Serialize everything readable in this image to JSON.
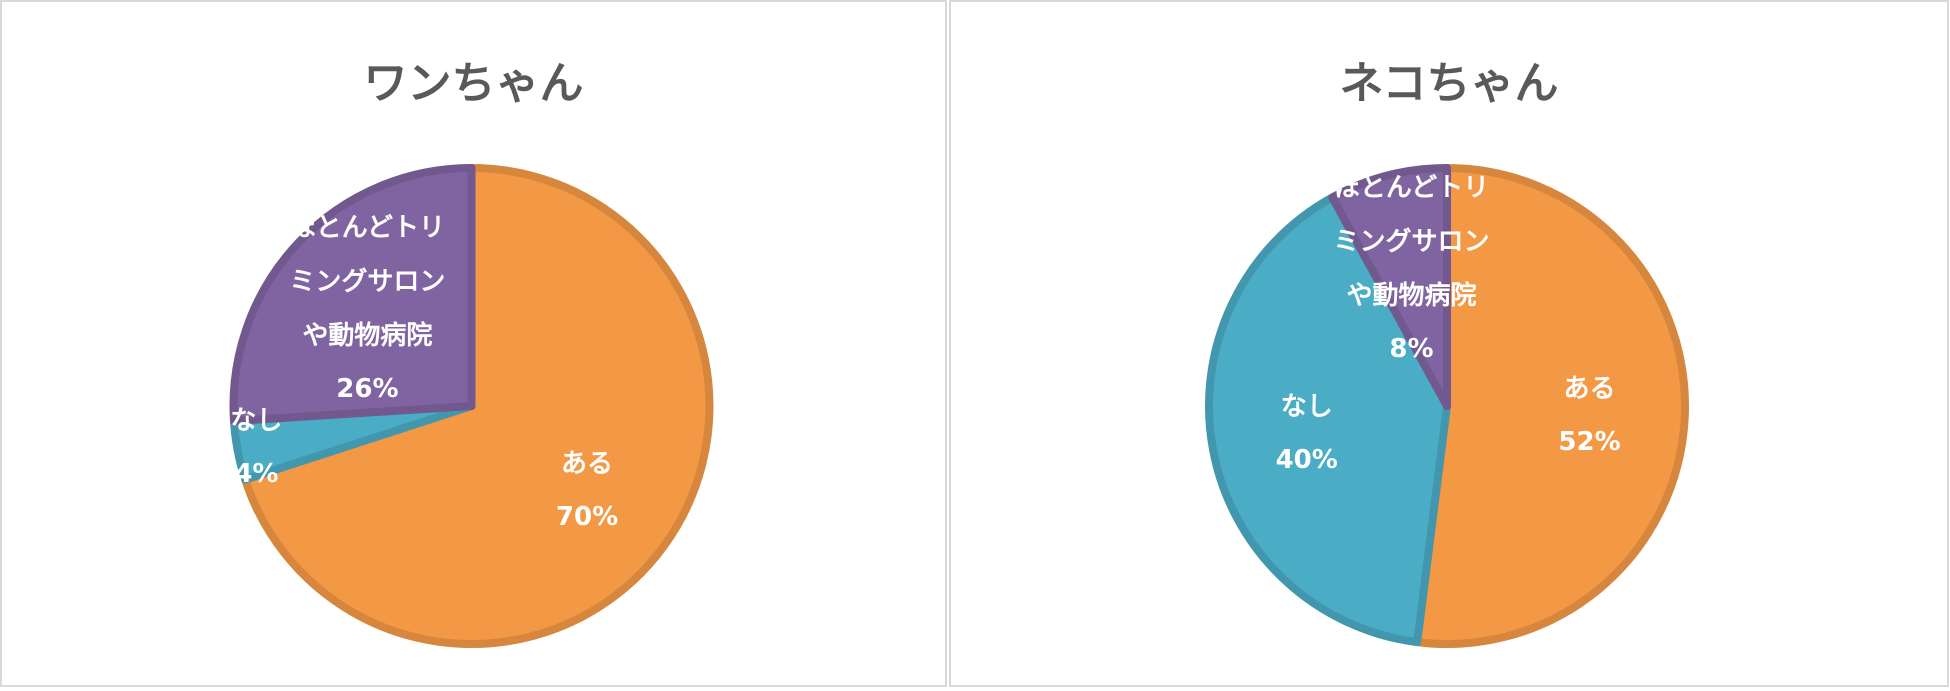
{
  "chart_data": [
    {
      "type": "pie",
      "title": "ワンちゃん",
      "categories": [
        "ある",
        "なし",
        "ほとんどトリミングサロンや動物病院"
      ],
      "values": [
        70,
        4,
        26
      ],
      "value_labels": [
        "70%",
        "4%",
        "26%"
      ],
      "colors": [
        "#f39845",
        "#4bacc6",
        "#8064a2"
      ]
    },
    {
      "type": "pie",
      "title": "ネコちゃん",
      "categories": [
        "ある",
        "なし",
        "ほとんどトリミングサロンや動物病院"
      ],
      "values": [
        52,
        40,
        8
      ],
      "value_labels": [
        "52%",
        "40%",
        "8%"
      ],
      "colors": [
        "#f39845",
        "#4bacc6",
        "#8064a2"
      ]
    }
  ]
}
